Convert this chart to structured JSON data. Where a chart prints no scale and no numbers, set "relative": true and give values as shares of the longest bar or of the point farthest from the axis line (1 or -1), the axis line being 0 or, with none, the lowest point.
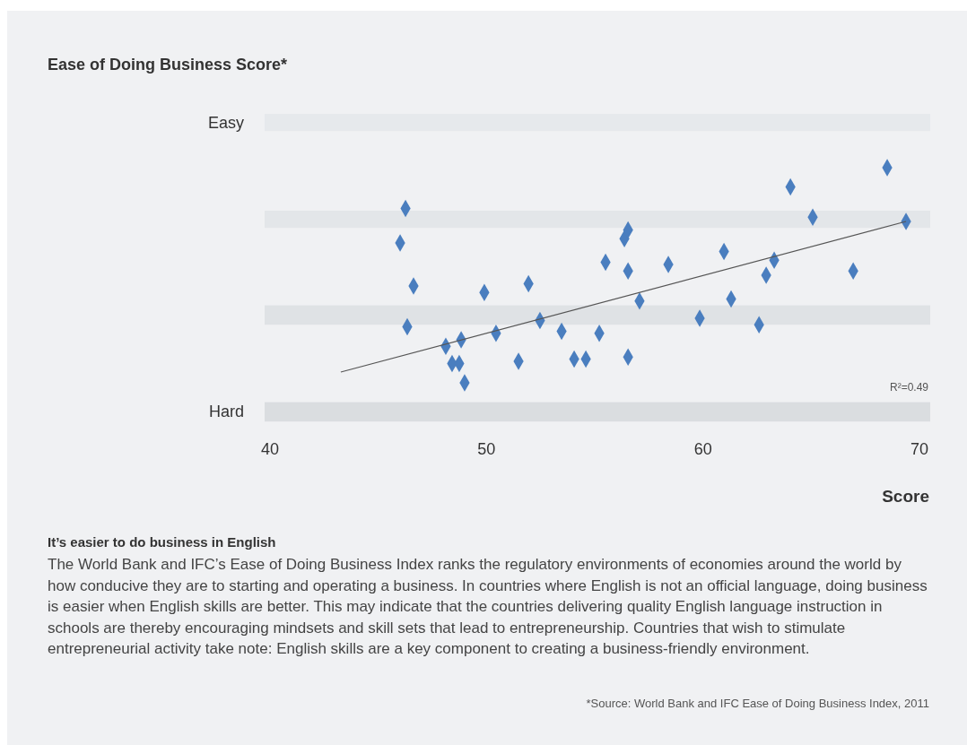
{
  "chart_data": {
    "type": "scatter",
    "title": "Ease of Doing Business Score*",
    "xlabel": "Score",
    "xlim": [
      40,
      70
    ],
    "xticks": [
      40,
      50,
      60,
      70
    ],
    "relative": true,
    "bands": [
      {
        "axis": "y",
        "from": 1.17,
        "to": 1.25,
        "color": "#e6e9ec"
      },
      {
        "axis": "y",
        "from": 0.72,
        "to": 0.8,
        "color": "#e3e6e9"
      },
      {
        "axis": "y",
        "from": 0.27,
        "to": 0.36,
        "color": "#dfe2e5"
      },
      {
        "axis": "y",
        "from": -0.18,
        "to": -0.09,
        "color": "#dadde0"
      }
    ],
    "series": [
      {
        "color": "#4a7ebf",
        "marker": "diamond",
        "x": [
          46.26,
          46.01,
          46.63,
          46.34,
          48.12,
          48.83,
          48.41,
          48.74,
          48.99,
          49.9,
          50.44,
          51.94,
          51.48,
          52.47,
          53.47,
          54.05,
          54.59,
          55.21,
          55.5,
          56.37,
          56.54,
          56.54,
          56.54,
          57.07,
          58.4,
          59.85,
          60.97,
          61.3,
          62.59,
          62.92,
          63.29,
          64.04,
          65.07,
          66.94,
          68.51,
          69.38
        ],
        "values": [
          0.81,
          0.65,
          0.45,
          0.26,
          0.17,
          0.2,
          0.09,
          0.09,
          0,
          0.42,
          0.23,
          0.46,
          0.1,
          0.29,
          0.24,
          0.11,
          0.11,
          0.23,
          0.56,
          0.67,
          0.71,
          0.52,
          0.12,
          0.38,
          0.55,
          0.3,
          0.61,
          0.39,
          0.27,
          0.5,
          0.57,
          0.91,
          0.77,
          0.52,
          1,
          0.75
        ]
      },
      {
        "type": "line",
        "color": "#555555",
        "marker": "none",
        "x": [
          43.27,
          69.38
        ],
        "values": [
          0.05,
          0.75
        ]
      }
    ],
    "annotations": [
      "It’s easier to do business in English",
      "The World Bank and IFC’s Ease of Doing Business Index ranks the regulatory environments of economies around the world by how conducive they are to starting and operating a business. In countries where English is not an official language, doing business is easier when English skills are better. This may indicate that the countries delivering quality English language instruction in schools are thereby encouraging mindsets and skill sets that lead to entrepreneurship. Countries that wish to stimulate entrepreneurial activity take note: English skills are a key component to creating a business-friendly environment.",
      "*Source: World Bank and IFC Ease of Doing Business Index, 2011",
      "R²=0.49",
      "Easy",
      "Hard"
    ]
  }
}
